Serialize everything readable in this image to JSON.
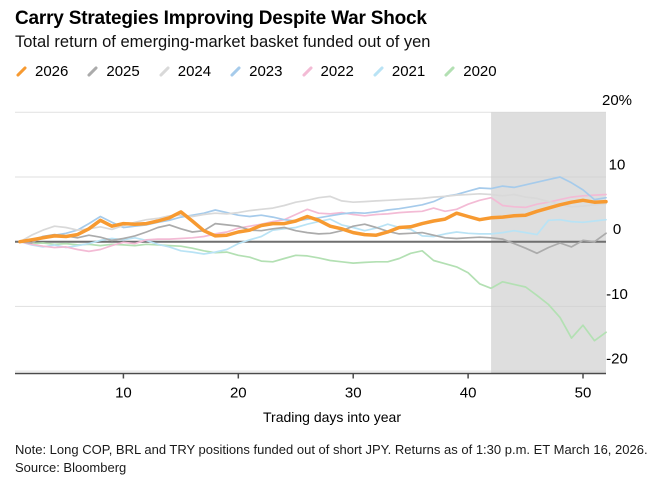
{
  "header": {
    "title": "Carry Strategies Improving Despite War Shock",
    "subtitle": "Total return of emerging-market basket funded out of yen"
  },
  "footer": {
    "note": "Note: Long COP, BRL and TRY positions funded out of short JPY. Returns as of 1:30 p.m. ET March 16, 2026.",
    "source": "Source: Bloomberg"
  },
  "colors": {
    "grid": "#DADADA",
    "grid_over_shade": "#CFCFCF",
    "zero_line": "#6F6F6F",
    "axis": "#4A4A4A",
    "shade": "#DEDEDE",
    "text": "#000000"
  },
  "chart_data": {
    "type": "line",
    "title": "Carry Strategies Improving Despite War Shock",
    "subtitle": "Total return of emerging-market basket funded out of yen",
    "xlabel": "Trading days into year",
    "ylabel": "%",
    "xlim": [
      1,
      52
    ],
    "ylim": [
      -20,
      20
    ],
    "grid": true,
    "legend_position": "top",
    "x_unit": "trading day of year",
    "x": [
      1,
      2,
      3,
      4,
      5,
      6,
      7,
      8,
      9,
      10,
      11,
      12,
      13,
      14,
      15,
      16,
      17,
      18,
      19,
      20,
      21,
      22,
      23,
      24,
      25,
      26,
      27,
      28,
      29,
      30,
      31,
      32,
      33,
      34,
      35,
      36,
      37,
      38,
      39,
      40,
      41,
      42,
      43,
      44,
      45,
      46,
      47,
      48,
      49,
      50,
      51,
      52
    ],
    "xticks": [
      {
        "value": 10,
        "label": "10"
      },
      {
        "value": 20,
        "label": "20"
      },
      {
        "value": 30,
        "label": "30"
      },
      {
        "value": 40,
        "label": "40"
      },
      {
        "value": 50,
        "label": "50"
      }
    ],
    "yticks": [
      {
        "value": 20,
        "label": "20%"
      },
      {
        "value": 10,
        "label": "10"
      },
      {
        "value": 0,
        "label": "0"
      },
      {
        "value": -10,
        "label": "-10"
      },
      {
        "value": -20,
        "label": "-20"
      }
    ],
    "shaded_region": {
      "from_day": 42,
      "to_day": 52
    },
    "series": [
      {
        "name": "2026",
        "color": "#F79A31",
        "emphasized": true,
        "values": [
          0,
          0.3,
          0.6,
          0.9,
          0.8,
          1.1,
          2.0,
          3.3,
          2.4,
          2.8,
          2.7,
          2.8,
          3.2,
          3.7,
          4.6,
          3.2,
          1.7,
          0.9,
          1.0,
          1.5,
          1.8,
          2.5,
          2.8,
          2.8,
          3.2,
          3.9,
          3.3,
          2.4,
          2.0,
          1.4,
          1.1,
          1.0,
          1.5,
          2.2,
          2.3,
          2.8,
          3.2,
          3.5,
          4.4,
          3.9,
          3.4,
          3.7,
          3.8,
          4.0,
          4.1,
          4.7,
          5.2,
          5.7,
          6.1,
          6.4,
          6.1,
          6.2
        ]
      },
      {
        "name": "2025",
        "color": "#ABABAB",
        "emphasized": false,
        "values": [
          0,
          -0.2,
          0.8,
          1.1,
          0.9,
          0.6,
          1.0,
          0.7,
          0.2,
          0.5,
          0.9,
          1.5,
          2.2,
          2.6,
          2.0,
          1.5,
          1.7,
          2.8,
          2.6,
          2.4,
          1.8,
          1.7,
          2.0,
          2.2,
          1.7,
          1.4,
          1.2,
          1.3,
          1.7,
          2.4,
          2.7,
          2.2,
          1.6,
          1.2,
          1.3,
          1.4,
          1.0,
          0.6,
          0.5,
          0.6,
          0.7,
          0.6,
          0.4,
          -0.3,
          -1.0,
          -1.8,
          -0.9,
          -0.2,
          -0.8,
          0.2,
          0.0,
          1.3
        ]
      },
      {
        "name": "2024",
        "color": "#D9D9D9",
        "emphasized": false,
        "values": [
          0,
          1.0,
          1.8,
          2.4,
          2.2,
          1.8,
          2.0,
          2.3,
          1.9,
          2.5,
          3.0,
          3.4,
          3.6,
          4.0,
          4.1,
          3.9,
          4.2,
          4.4,
          4.3,
          4.5,
          4.8,
          5.0,
          5.2,
          5.6,
          6.1,
          6.4,
          6.8,
          7.0,
          6.3,
          6.1,
          6.2,
          6.3,
          6.4,
          6.5,
          6.6,
          6.7,
          6.9,
          7.0,
          7.2,
          7.3,
          7.4,
          7.3,
          7.1,
          7.3,
          6.9,
          6.7,
          6.2,
          5.8,
          5.4,
          5.5,
          5.7,
          5.9
        ]
      },
      {
        "name": "2023",
        "color": "#A6CBEB",
        "emphasized": false,
        "values": [
          0,
          0.3,
          0.8,
          1.0,
          1.3,
          1.8,
          2.8,
          3.9,
          3.0,
          2.2,
          2.4,
          2.6,
          3.0,
          3.3,
          3.8,
          4.1,
          4.4,
          4.9,
          4.5,
          4.1,
          3.9,
          4.1,
          3.8,
          3.4,
          3.2,
          3.5,
          3.7,
          4.0,
          4.3,
          4.5,
          4.4,
          4.6,
          4.9,
          5.1,
          5.4,
          5.7,
          6.2,
          7.0,
          7.3,
          7.8,
          8.3,
          8.2,
          8.6,
          8.4,
          8.8,
          9.2,
          9.6,
          10.0,
          9.1,
          8.0,
          6.5,
          6.8
        ]
      },
      {
        "name": "2022",
        "color": "#F3BBD5",
        "emphasized": false,
        "values": [
          0,
          -0.4,
          -0.7,
          -0.9,
          -0.8,
          -1.2,
          -1.5,
          -1.2,
          -0.6,
          -0.1,
          -0.3,
          0.3,
          0.4,
          0.4,
          0.5,
          0.6,
          0.8,
          1.2,
          1.5,
          2.1,
          2.4,
          2.7,
          3.1,
          3.4,
          4.2,
          5.0,
          4.4,
          4.3,
          4.5,
          4.2,
          4.0,
          4.2,
          4.3,
          4.5,
          4.6,
          4.7,
          5.2,
          4.7,
          5.0,
          5.8,
          6.4,
          6.8,
          5.6,
          5.4,
          5.3,
          5.8,
          6.1,
          6.5,
          6.9,
          7.1,
          7.2,
          7.3
        ]
      },
      {
        "name": "2021",
        "color": "#B9E3F5",
        "emphasized": false,
        "values": [
          0,
          -0.5,
          -0.8,
          -0.5,
          -0.9,
          -0.6,
          -0.3,
          0.2,
          0.5,
          0.3,
          0.6,
          0.2,
          -0.4,
          -0.8,
          -1.4,
          -1.6,
          -1.9,
          -1.6,
          -1.2,
          -0.3,
          0.3,
          0.8,
          1.8,
          2.0,
          2.2,
          2.7,
          3.1,
          3.5,
          2.6,
          2.2,
          1.7,
          2.1,
          2.7,
          2.2,
          1.9,
          0.9,
          0.8,
          1.2,
          1.5,
          1.3,
          1.2,
          1.2,
          1.4,
          1.7,
          1.4,
          1.1,
          3.3,
          3.4,
          3.1,
          3.0,
          3.2,
          3.4
        ]
      },
      {
        "name": "2020",
        "color": "#B3E0B3",
        "emphasized": false,
        "values": [
          0,
          -0.3,
          -0.2,
          -0.4,
          -0.3,
          -0.5,
          -0.4,
          -0.6,
          -0.4,
          -0.5,
          -0.6,
          -0.4,
          -0.5,
          -0.6,
          -0.7,
          -1.0,
          -1.4,
          -1.7,
          -1.6,
          -2.1,
          -2.4,
          -3.0,
          -3.1,
          -2.6,
          -2.1,
          -2.2,
          -2.5,
          -2.9,
          -3.1,
          -3.3,
          -3.2,
          -3.1,
          -3.1,
          -2.6,
          -1.8,
          -1.4,
          -2.9,
          -3.4,
          -3.9,
          -4.8,
          -6.5,
          -7.2,
          -6.2,
          -6.6,
          -7.0,
          -8.3,
          -9.7,
          -11.7,
          -14.9,
          -12.9,
          -15.3,
          -14.0
        ]
      }
    ]
  }
}
